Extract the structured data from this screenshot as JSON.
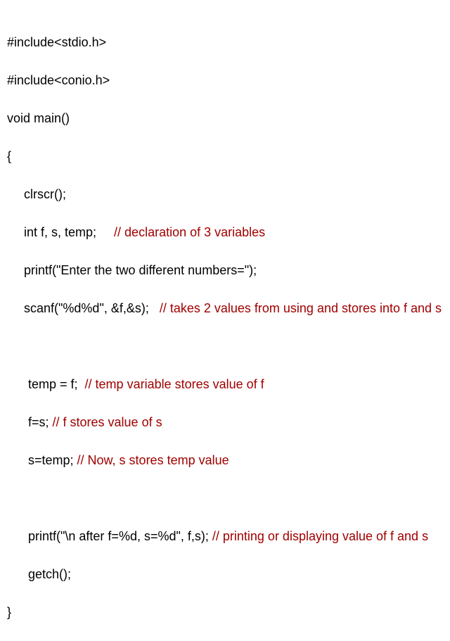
{
  "code": {
    "line1": "#include<stdio.h>",
    "line2": "#include<conio.h>",
    "line3": "void main()",
    "line4": "{",
    "line5_code": "clrscr();",
    "line6_code": "int f, s, temp;     ",
    "line6_comment": "// declaration of 3 variables",
    "line7_code": "printf(\"Enter the two different numbers=\");",
    "line8_code": "scanf(\"%d%d\", &f,&s);   ",
    "line8_comment": "// takes 2 values from using and stores into f and s",
    "line9_code": "temp = f;  ",
    "line9_comment": "// temp variable stores value of f",
    "line10_code": "f=s; ",
    "line10_comment": "// f stores value of s",
    "line11_code": "s=temp; ",
    "line11_comment": "// Now, s stores temp value",
    "line12_code": "printf(\"\\n after f=%d, s=%d\", f,s); ",
    "line12_comment": "// printing or displaying value of f and s",
    "line13_code": "getch();",
    "line14": "}"
  },
  "colors": {
    "text": "#000000",
    "comment": "#a00000",
    "background": "#ffffff"
  },
  "typography": {
    "font_family": "Arial, Helvetica, sans-serif",
    "font_size": 18,
    "line_height": 1.5
  }
}
